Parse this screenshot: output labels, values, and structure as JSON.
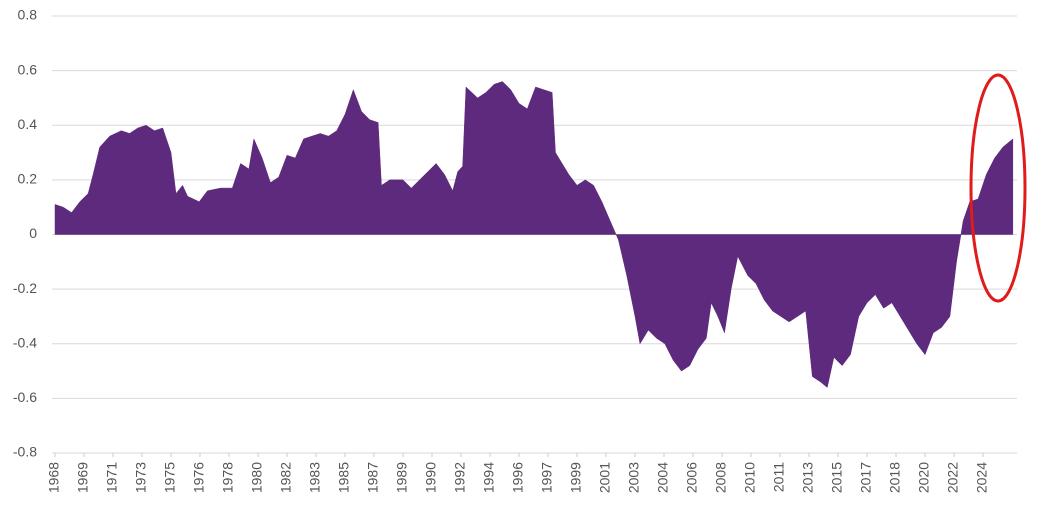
{
  "chart_data": {
    "type": "area",
    "color": "#5e2a7e",
    "grid": true,
    "x": [
      1968.0,
      1968.5,
      1969.0,
      1969.5,
      1970.0,
      1970.3,
      1970.7,
      1971.3,
      1972.0,
      1972.5,
      1973.0,
      1973.5,
      1974.0,
      1974.5,
      1975.0,
      1975.3,
      1975.7,
      1976.0,
      1976.7,
      1977.2,
      1978.0,
      1978.7,
      1979.2,
      1979.7,
      1980.0,
      1980.5,
      1981.0,
      1981.5,
      1982.0,
      1982.5,
      1983.0,
      1983.5,
      1984.0,
      1984.5,
      1985.0,
      1985.5,
      1986.0,
      1986.5,
      1987.0,
      1987.5,
      1987.7,
      1988.2,
      1989.0,
      1989.5,
      1990.0,
      1990.5,
      1991.0,
      1991.5,
      1992.0,
      1992.3,
      1992.6,
      1992.8,
      1993.5,
      1994.0,
      1994.5,
      1995.0,
      1995.5,
      1996.0,
      1996.5,
      1997.0,
      1997.5,
      1998.0,
      1998.2,
      1999.0,
      1999.5,
      2000.0,
      2000.5,
      2001.0,
      2001.5,
      2002.0,
      2002.5,
      2003.0,
      2003.3,
      2003.8,
      2004.3,
      2004.8,
      2005.3,
      2005.8,
      2006.3,
      2006.8,
      2007.3,
      2007.6,
      2008.0,
      2008.4,
      2008.8,
      2009.2,
      2009.8,
      2010.3,
      2010.8,
      2011.3,
      2011.8,
      2012.3,
      2012.8,
      2013.3,
      2013.7,
      2014.2,
      2014.6,
      2015.0,
      2015.5,
      2016.0,
      2016.5,
      2017.0,
      2017.5,
      2018.0,
      2018.5,
      2019.0,
      2019.5,
      2020.0,
      2020.5,
      2021.0,
      2021.5,
      2022.0,
      2022.4,
      2022.8,
      2023.2,
      2023.7,
      2024.2,
      2024.7,
      2025.2,
      2025.8
    ],
    "values": [
      0.11,
      0.1,
      0.08,
      0.12,
      0.15,
      0.22,
      0.32,
      0.36,
      0.38,
      0.37,
      0.39,
      0.4,
      0.38,
      0.39,
      0.3,
      0.15,
      0.18,
      0.14,
      0.12,
      0.16,
      0.17,
      0.17,
      0.26,
      0.24,
      0.35,
      0.28,
      0.19,
      0.21,
      0.29,
      0.28,
      0.35,
      0.36,
      0.37,
      0.36,
      0.38,
      0.44,
      0.53,
      0.45,
      0.42,
      0.41,
      0.18,
      0.2,
      0.2,
      0.17,
      0.2,
      0.23,
      0.26,
      0.22,
      0.16,
      0.23,
      0.25,
      0.54,
      0.5,
      0.52,
      0.55,
      0.56,
      0.53,
      0.48,
      0.46,
      0.54,
      0.53,
      0.52,
      0.3,
      0.22,
      0.18,
      0.2,
      0.18,
      0.12,
      0.05,
      -0.02,
      -0.15,
      -0.3,
      -0.4,
      -0.35,
      -0.38,
      -0.4,
      -0.46,
      -0.5,
      -0.48,
      -0.42,
      -0.38,
      -0.25,
      -0.3,
      -0.36,
      -0.2,
      -0.08,
      -0.15,
      -0.18,
      -0.24,
      -0.28,
      -0.3,
      -0.32,
      -0.3,
      -0.28,
      -0.52,
      -0.54,
      -0.56,
      -0.45,
      -0.48,
      -0.44,
      -0.3,
      -0.25,
      -0.22,
      -0.27,
      -0.25,
      -0.3,
      -0.35,
      -0.4,
      -0.44,
      -0.36,
      -0.34,
      -0.3,
      -0.1,
      0.05,
      0.12,
      0.13,
      0.22,
      0.28,
      0.32,
      0.35
    ],
    "xlim": [
      1968,
      2026.05
    ],
    "xticks": [
      1968,
      {
        "value": 1969.75,
        "label": "1969"
      },
      {
        "value": 1971.5,
        "label": "1971"
      },
      {
        "value": 1973.25,
        "label": "1973"
      },
      1975,
      {
        "value": 1976.75,
        "label": "1976"
      },
      {
        "value": 1978.5,
        "label": "1978"
      },
      {
        "value": 1980.25,
        "label": "1980"
      },
      1982,
      {
        "value": 1983.75,
        "label": "1983"
      },
      {
        "value": 1985.5,
        "label": "1985"
      },
      {
        "value": 1987.25,
        "label": "1987"
      },
      1989,
      {
        "value": 1990.75,
        "label": "1990"
      },
      {
        "value": 1992.5,
        "label": "1992"
      },
      {
        "value": 1994.25,
        "label": "1994"
      },
      1996,
      {
        "value": 1997.75,
        "label": "1997"
      },
      {
        "value": 1999.5,
        "label": "1999"
      },
      {
        "value": 2001.25,
        "label": "2001"
      },
      2003,
      {
        "value": 2004.75,
        "label": "2004"
      },
      {
        "value": 2006.5,
        "label": "2006"
      },
      {
        "value": 2008.25,
        "label": "2008"
      },
      2010,
      {
        "value": 2011.75,
        "label": "2011"
      },
      {
        "value": 2013.5,
        "label": "2013"
      },
      {
        "value": 2015.25,
        "label": "2015"
      },
      2017,
      {
        "value": 2018.75,
        "label": "2018"
      },
      {
        "value": 2020.5,
        "label": "2020"
      },
      {
        "value": 2022.25,
        "label": "2022"
      },
      2024
    ],
    "ylim": [
      -0.8,
      0.8
    ],
    "yticks": [
      0.8,
      0.6,
      0.4,
      0.2,
      0,
      -0.2,
      -0.4,
      -0.6,
      -0.8
    ]
  }
}
